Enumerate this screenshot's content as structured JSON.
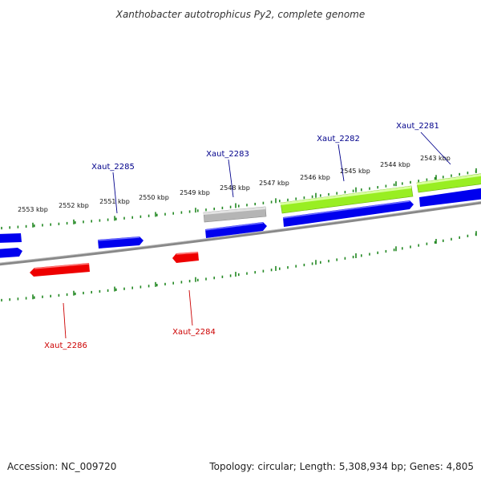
{
  "title": "Xanthobacter autotrophicus Py2, complete genome",
  "footer": {
    "accession": "Accession: NC_009720",
    "summary": "Topology: circular; Length: 5,308,934 bp; Genes: 4,805"
  },
  "colors": {
    "forward_gene": "#0000ee",
    "reverse_gene": "#ee0000",
    "highlight_gene": "#99ee22",
    "grey_gene": "#bbbbbb",
    "backbone": "#777777",
    "tick": "#228822",
    "label_forward": "#00008b",
    "label_reverse": "#cc0000"
  },
  "ticks": [
    {
      "label": "2553 kbp"
    },
    {
      "label": "2552 kbp"
    },
    {
      "label": "2551 kbp"
    },
    {
      "label": "2550 kbp"
    },
    {
      "label": "2549 kbp"
    },
    {
      "label": "2548 kbp"
    },
    {
      "label": "2547 kbp"
    },
    {
      "label": "2546 kbp"
    },
    {
      "label": "2545 kbp"
    },
    {
      "label": "2544 kbp"
    },
    {
      "label": "2543 kbp"
    }
  ],
  "gene_labels": [
    {
      "name": "Xaut_2285",
      "strand": "forward"
    },
    {
      "name": "Xaut_2283",
      "strand": "forward"
    },
    {
      "name": "Xaut_2282",
      "strand": "forward"
    },
    {
      "name": "Xaut_2281",
      "strand": "forward"
    },
    {
      "name": "Xaut_2286",
      "strand": "reverse"
    },
    {
      "name": "Xaut_2284",
      "strand": "reverse"
    }
  ]
}
